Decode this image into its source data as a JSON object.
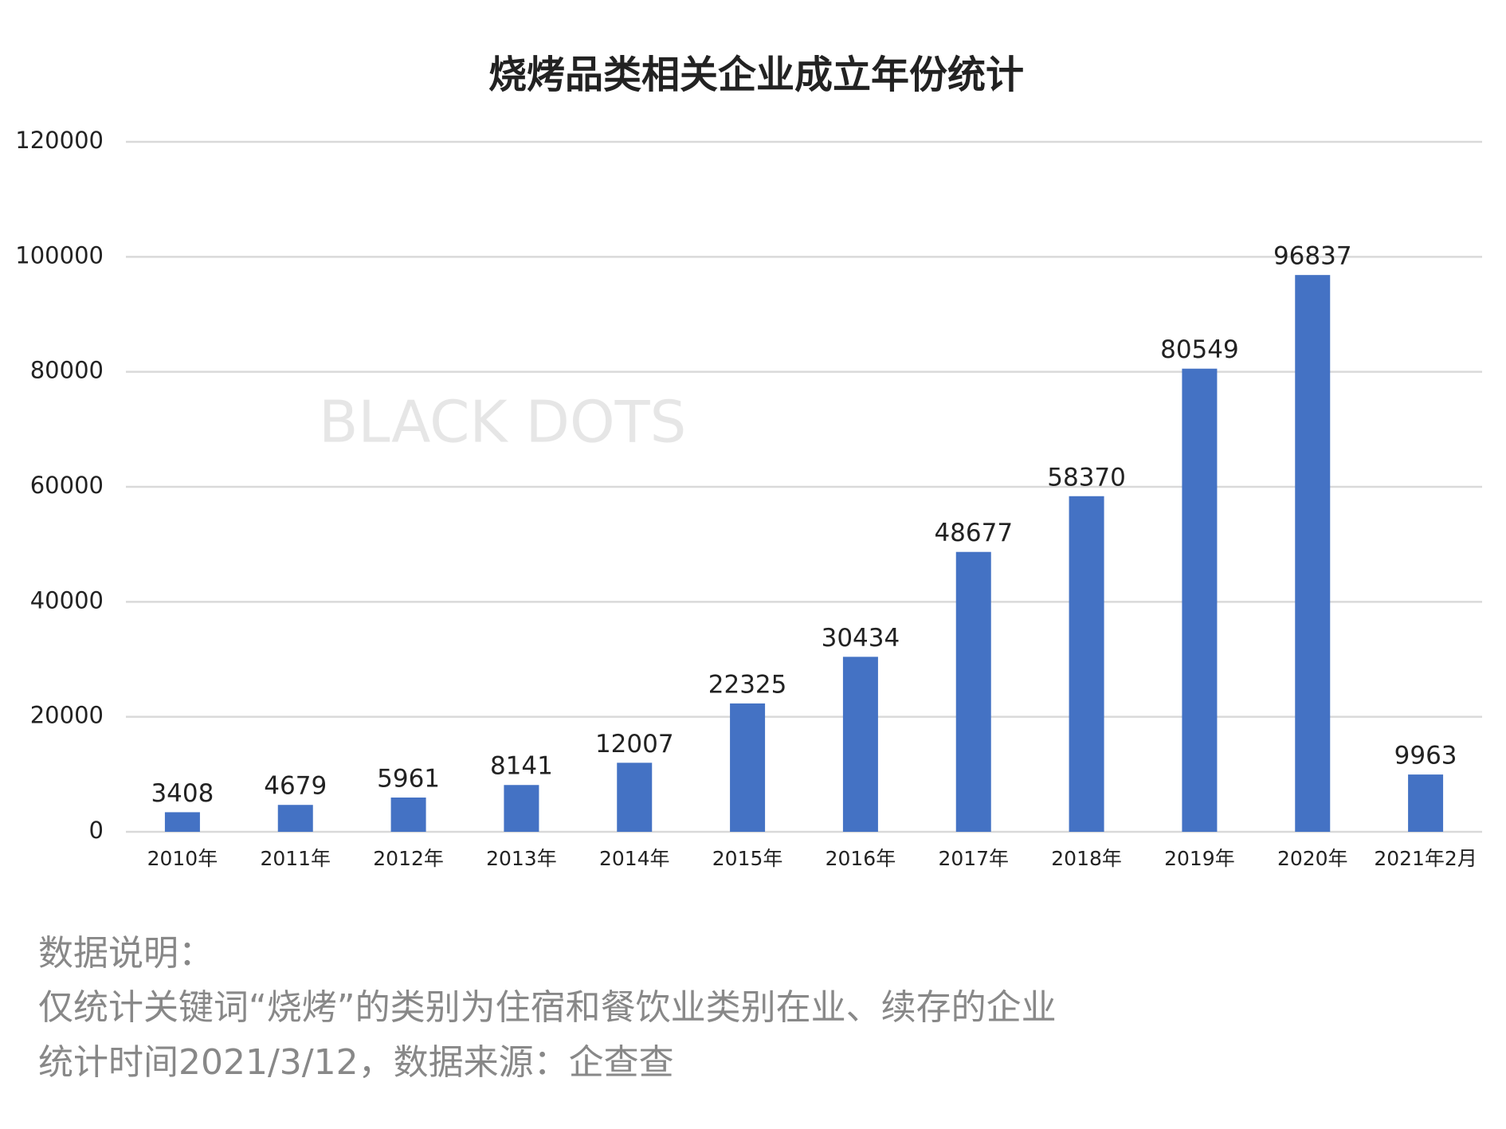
{
  "chart_data": {
    "type": "bar",
    "title": "烧烤品类相关企业成立年份统计",
    "categories": [
      "2010年",
      "2011年",
      "2012年",
      "2013年",
      "2014年",
      "2015年",
      "2016年",
      "2017年",
      "2018年",
      "2019年",
      "2020年",
      "2021年2月"
    ],
    "values": [
      3408,
      4679,
      5961,
      8141,
      12007,
      22325,
      30434,
      48677,
      58370,
      80549,
      96837,
      9963
    ],
    "color": "#4472c4",
    "ylim": [
      0,
      120000
    ],
    "yticks": [
      0,
      20000,
      40000,
      60000,
      80000,
      100000,
      120000
    ],
    "grid": true,
    "watermark": "BLACK DOTS"
  },
  "notes": [
    "数据说明：",
    "仅统计关键词“烧烤”的类别为住宿和餐饮业类别在业、续存的企业",
    "统计时间2021/3/12，数据来源：企查查"
  ]
}
